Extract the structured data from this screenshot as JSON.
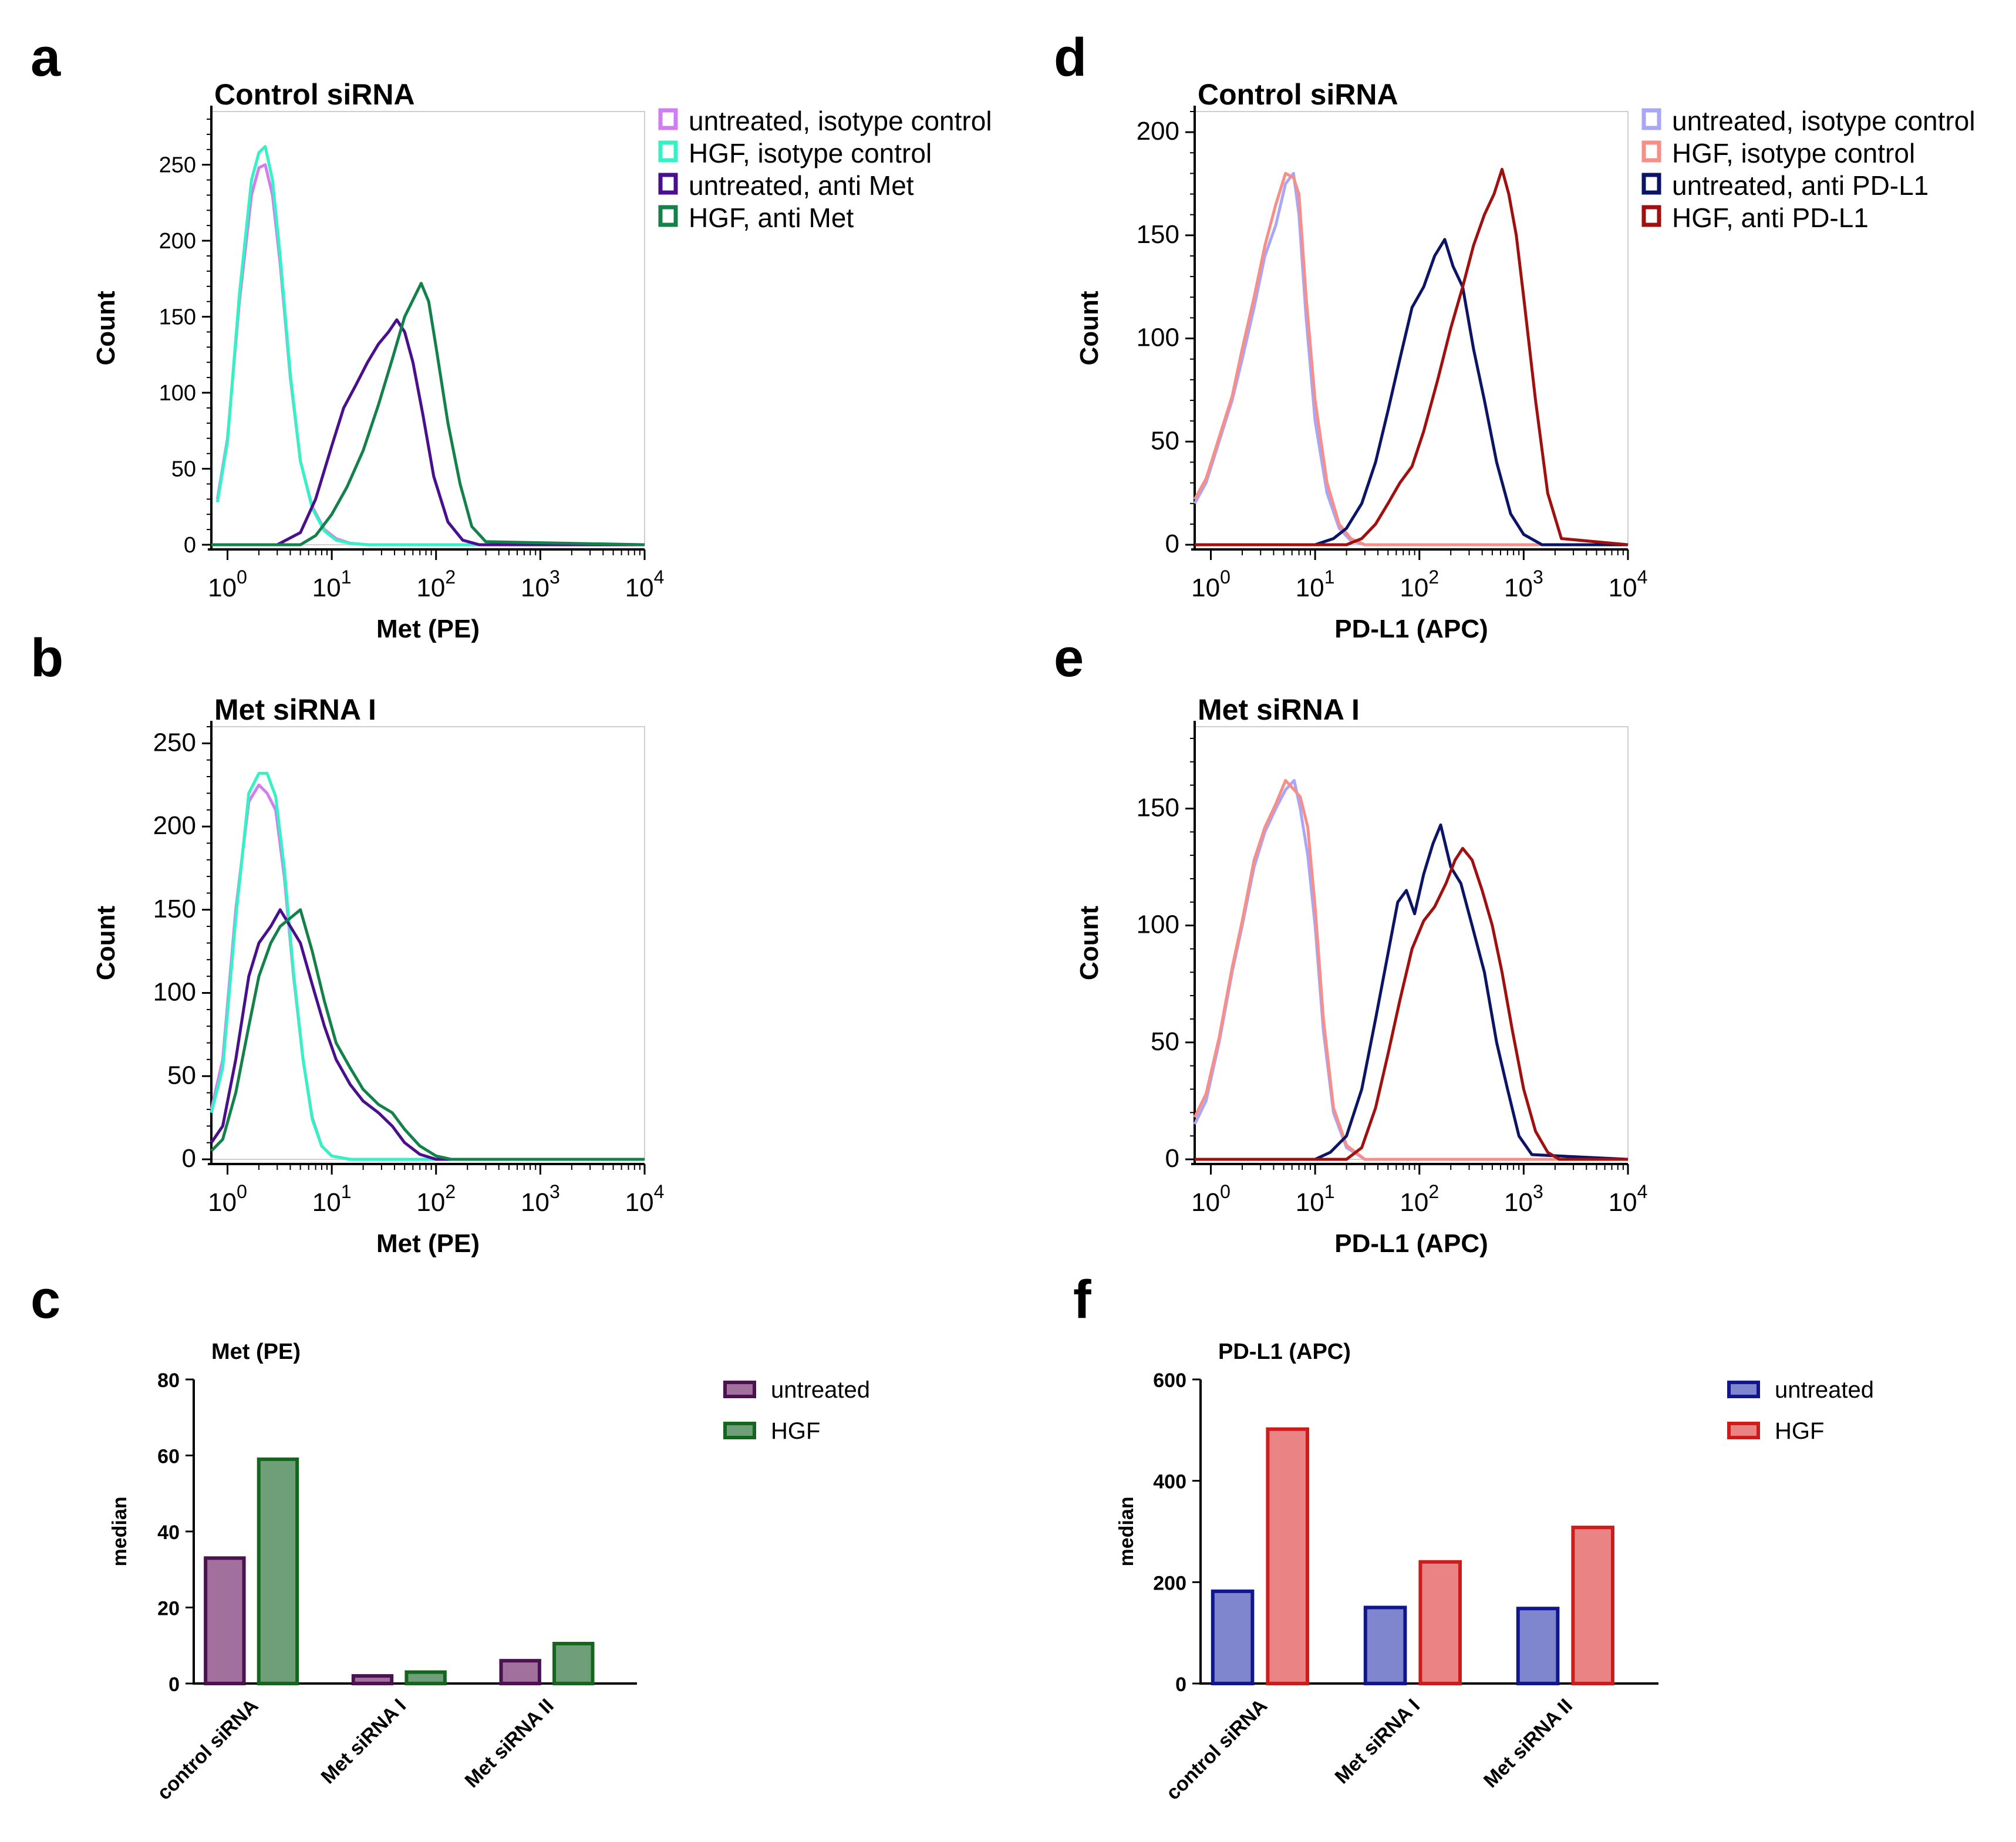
{
  "panel_letters": [
    "a",
    "b",
    "c",
    "d",
    "e",
    "f"
  ],
  "colors": {
    "iso_untreated_met": "#d17df2",
    "iso_hgf_met": "#33f2c4",
    "anti_untreated_met": "#4a0f8c",
    "anti_hgf_met": "#14814a",
    "iso_untreated_pdl1": "#a9a6f7",
    "iso_hgf_pdl1": "#f78e87",
    "anti_untreated_pdl1": "#0c1466",
    "anti_hgf_pdl1": "#a0100f",
    "bar_untreated_met_fill": "#a1709c",
    "bar_untreated_met_stroke": "#4b1150",
    "bar_hgf_met_fill": "#6f9f78",
    "bar_hgf_met_stroke": "#16651f",
    "bar_untreated_pdl1_fill": "#7f86ce",
    "bar_untreated_pdl1_stroke": "#10168c",
    "bar_hgf_pdl1_fill": "#ea8383",
    "bar_hgf_pdl1_stroke": "#cc1c1c"
  },
  "chart_data": [
    {
      "id": "a",
      "type": "line",
      "title": "Control siRNA",
      "xlabel": "Met (PE)",
      "ylabel": "Count",
      "xscale": "log",
      "xlim": [
        0.7,
        10000
      ],
      "ylim": [
        0,
        285
      ],
      "xticks": [
        "10",
        "10",
        "10",
        "10",
        "10"
      ],
      "xtick_exps": [
        "0",
        "1",
        "2",
        "3",
        "4"
      ],
      "yticks": [
        0,
        50,
        100,
        150,
        200,
        250
      ],
      "legend": [
        "untreated, isotype control",
        "HGF, isotype control",
        "untreated, anti Met",
        "HGF, anti Met"
      ],
      "series": [
        {
          "name": "untreated, isotype control",
          "color_key": "iso_untreated_met",
          "x": [
            0.8,
            1.0,
            1.3,
            1.7,
            2.0,
            2.3,
            2.7,
            3.2,
            4.0,
            5.0,
            6.5,
            8.5,
            11,
            15,
            22,
            40,
            10000
          ],
          "y": [
            30,
            70,
            160,
            230,
            248,
            250,
            230,
            185,
            110,
            55,
            25,
            10,
            4,
            1,
            0,
            0,
            0
          ]
        },
        {
          "name": "HGF, isotype control",
          "color_key": "iso_hgf_met",
          "x": [
            0.8,
            1.0,
            1.3,
            1.7,
            2.0,
            2.3,
            2.7,
            3.2,
            4.0,
            5.0,
            6.5,
            8.5,
            11,
            15,
            22,
            40,
            10000
          ],
          "y": [
            28,
            68,
            165,
            240,
            258,
            262,
            240,
            190,
            112,
            55,
            24,
            9,
            3,
            1,
            0,
            0,
            0
          ]
        },
        {
          "name": "untreated, anti Met",
          "color_key": "anti_untreated_met",
          "x": [
            0.7,
            3,
            5,
            7,
            10,
            13,
            17,
            22,
            28,
            35,
            42,
            50,
            60,
            75,
            95,
            130,
            180,
            260,
            10000
          ],
          "y": [
            0,
            0,
            8,
            30,
            65,
            90,
            105,
            120,
            132,
            140,
            148,
            140,
            120,
            85,
            45,
            15,
            3,
            0,
            0
          ]
        },
        {
          "name": "HGF, anti Met",
          "color_key": "anti_hgf_met",
          "x": [
            0.7,
            5,
            7,
            10,
            14,
            20,
            28,
            38,
            50,
            62,
            72,
            85,
            100,
            130,
            170,
            220,
            300,
            10000
          ],
          "y": [
            0,
            0,
            6,
            20,
            38,
            62,
            92,
            122,
            150,
            163,
            172,
            160,
            130,
            80,
            40,
            12,
            2,
            0
          ]
        }
      ]
    },
    {
      "id": "b",
      "type": "line",
      "title": "Met siRNA I",
      "xlabel": "Met (PE)",
      "ylabel": "Count",
      "xscale": "log",
      "xlim": [
        0.7,
        10000
      ],
      "ylim": [
        0,
        260
      ],
      "xticks": [
        "10",
        "10",
        "10",
        "10",
        "10"
      ],
      "xtick_exps": [
        "0",
        "1",
        "2",
        "3",
        "4"
      ],
      "yticks": [
        0,
        50,
        100,
        150,
        200,
        250
      ],
      "series": [
        {
          "name": "untreated, isotype control",
          "color_key": "iso_untreated_met",
          "x": [
            0.7,
            0.9,
            1.2,
            1.6,
            2.0,
            2.4,
            2.9,
            3.5,
            4.3,
            5.3,
            6.5,
            8,
            10,
            15,
            25,
            10000
          ],
          "y": [
            30,
            60,
            150,
            215,
            225,
            220,
            210,
            170,
            110,
            60,
            25,
            8,
            2,
            0,
            0,
            0
          ]
        },
        {
          "name": "HGF, isotype control",
          "color_key": "iso_hgf_met",
          "x": [
            0.7,
            0.9,
            1.2,
            1.6,
            2.0,
            2.4,
            2.9,
            3.5,
            4.3,
            5.3,
            6.5,
            8,
            10,
            15,
            25,
            10000
          ],
          "y": [
            28,
            55,
            145,
            220,
            232,
            232,
            218,
            175,
            112,
            60,
            24,
            8,
            2,
            0,
            0,
            0
          ]
        },
        {
          "name": "untreated, anti Met",
          "color_key": "anti_untreated_met",
          "x": [
            0.7,
            0.9,
            1.2,
            1.6,
            2.0,
            2.6,
            3.2,
            4.0,
            5.0,
            6.5,
            8.5,
            11,
            15,
            20,
            28,
            38,
            50,
            70,
            100,
            10000
          ],
          "y": [
            10,
            20,
            60,
            110,
            130,
            140,
            150,
            140,
            130,
            105,
            80,
            60,
            45,
            35,
            28,
            20,
            10,
            3,
            0,
            0
          ]
        },
        {
          "name": "HGF, anti Met",
          "color_key": "anti_hgf_met",
          "x": [
            0.7,
            0.9,
            1.2,
            1.6,
            2.0,
            2.6,
            3.2,
            4.0,
            5.0,
            6.5,
            8.5,
            11,
            15,
            20,
            28,
            38,
            50,
            70,
            100,
            140,
            10000
          ],
          "y": [
            5,
            12,
            40,
            80,
            110,
            130,
            140,
            145,
            150,
            125,
            95,
            70,
            55,
            42,
            33,
            28,
            18,
            8,
            2,
            0,
            0
          ]
        }
      ]
    },
    {
      "id": "c",
      "type": "bar",
      "title": "Met (PE)",
      "ylabel": "median",
      "ylim": [
        0,
        80
      ],
      "yticks": [
        0,
        20,
        40,
        60,
        80
      ],
      "categories": [
        "control siRNA",
        "Met siRNA I",
        "Met siRNA II"
      ],
      "legend": [
        "untreated",
        "HGF"
      ],
      "series": [
        {
          "name": "untreated",
          "values": [
            33,
            2,
            6
          ]
        },
        {
          "name": "HGF",
          "values": [
            59,
            3,
            10.5
          ]
        }
      ]
    },
    {
      "id": "d",
      "type": "line",
      "title": "Control siRNA",
      "xlabel": "PD-L1 (APC)",
      "ylabel": "Count",
      "xscale": "log",
      "xlim": [
        0.7,
        10000
      ],
      "ylim": [
        0,
        210
      ],
      "xticks": [
        "10",
        "10",
        "10",
        "10",
        "10"
      ],
      "xtick_exps": [
        "0",
        "1",
        "2",
        "3",
        "4"
      ],
      "yticks": [
        0,
        50,
        100,
        150,
        200
      ],
      "legend": [
        "untreated, isotype control",
        "HGF, isotype control",
        "untreated, anti PD-L1",
        "HGF, anti PD-L1"
      ],
      "series": [
        {
          "name": "untreated, isotype control",
          "color_key": "iso_untreated_pdl1",
          "x": [
            0.7,
            0.9,
            1.2,
            1.6,
            2.0,
            2.6,
            3.3,
            4.2,
            5.2,
            6.2,
            7.0,
            8.2,
            10,
            13,
            17,
            22,
            30,
            10000
          ],
          "y": [
            20,
            30,
            50,
            70,
            90,
            115,
            140,
            155,
            175,
            180,
            160,
            110,
            60,
            25,
            8,
            2,
            0,
            0
          ]
        },
        {
          "name": "HGF, isotype control",
          "color_key": "iso_hgf_pdl1",
          "x": [
            0.7,
            0.9,
            1.2,
            1.6,
            2.0,
            2.6,
            3.3,
            4.2,
            5.2,
            6.2,
            7.0,
            8.2,
            10,
            13,
            17,
            22,
            30,
            10000
          ],
          "y": [
            22,
            32,
            52,
            72,
            95,
            120,
            145,
            165,
            180,
            178,
            170,
            120,
            70,
            30,
            10,
            3,
            0,
            0
          ]
        },
        {
          "name": "untreated, anti PD-L1",
          "color_key": "anti_untreated_pdl1",
          "x": [
            0.7,
            10,
            15,
            20,
            28,
            38,
            50,
            65,
            85,
            110,
            140,
            175,
            210,
            260,
            330,
            420,
            550,
            750,
            1000,
            1500,
            10000
          ],
          "y": [
            0,
            0,
            3,
            8,
            20,
            40,
            65,
            90,
            115,
            125,
            140,
            148,
            135,
            125,
            95,
            70,
            40,
            15,
            5,
            0,
            0
          ]
        },
        {
          "name": "HGF, anti PD-L1",
          "color_key": "anti_hgf_pdl1",
          "x": [
            0.7,
            20,
            28,
            38,
            50,
            65,
            85,
            110,
            150,
            200,
            260,
            330,
            420,
            520,
            620,
            720,
            850,
            1000,
            1300,
            1700,
            2300,
            10000
          ],
          "y": [
            0,
            0,
            3,
            10,
            20,
            30,
            38,
            55,
            80,
            105,
            125,
            145,
            160,
            170,
            182,
            170,
            150,
            120,
            70,
            25,
            3,
            0
          ]
        }
      ]
    },
    {
      "id": "e",
      "type": "line",
      "title": "Met siRNA I",
      "xlabel": "PD-L1 (APC)",
      "ylabel": "Count",
      "xscale": "log",
      "xlim": [
        0.7,
        10000
      ],
      "ylim": [
        0,
        185
      ],
      "xticks": [
        "10",
        "10",
        "10",
        "10",
        "10"
      ],
      "xtick_exps": [
        "0",
        "1",
        "2",
        "3",
        "4"
      ],
      "yticks": [
        0,
        50,
        100,
        150
      ],
      "series": [
        {
          "name": "untreated, isotype control",
          "color_key": "iso_untreated_pdl1",
          "x": [
            0.7,
            0.9,
            1.2,
            1.6,
            2.0,
            2.6,
            3.3,
            4.2,
            5.2,
            6.3,
            7.2,
            8.5,
            10,
            12,
            15,
            20,
            30,
            10000
          ],
          "y": [
            15,
            25,
            50,
            80,
            100,
            125,
            140,
            150,
            158,
            162,
            150,
            130,
            100,
            55,
            20,
            5,
            0,
            0
          ]
        },
        {
          "name": "HGF, isotype control",
          "color_key": "iso_hgf_pdl1",
          "x": [
            0.7,
            0.9,
            1.2,
            1.6,
            2.0,
            2.6,
            3.3,
            4.2,
            5.2,
            6.3,
            7.2,
            8.5,
            10,
            12,
            15,
            20,
            30,
            10000
          ],
          "y": [
            18,
            28,
            52,
            82,
            102,
            128,
            142,
            152,
            162,
            158,
            155,
            142,
            108,
            60,
            22,
            6,
            0,
            0
          ]
        },
        {
          "name": "untreated, anti PD-L1",
          "color_key": "anti_untreated_pdl1",
          "x": [
            0.7,
            10,
            14,
            20,
            28,
            38,
            50,
            62,
            75,
            90,
            110,
            135,
            160,
            200,
            250,
            320,
            420,
            550,
            700,
            900,
            1200,
            10000
          ],
          "y": [
            0,
            0,
            3,
            10,
            30,
            60,
            88,
            110,
            115,
            105,
            122,
            135,
            143,
            125,
            118,
            100,
            80,
            50,
            30,
            10,
            2,
            0
          ]
        },
        {
          "name": "HGF, anti PD-L1",
          "color_key": "anti_hgf_pdl1",
          "x": [
            0.7,
            20,
            28,
            38,
            50,
            65,
            85,
            110,
            140,
            180,
            220,
            260,
            320,
            400,
            500,
            620,
            780,
            1000,
            1300,
            1700,
            2200,
            10000
          ],
          "y": [
            0,
            0,
            5,
            22,
            45,
            68,
            90,
            102,
            108,
            118,
            128,
            133,
            128,
            115,
            100,
            80,
            55,
            30,
            12,
            3,
            0,
            0
          ]
        }
      ]
    },
    {
      "id": "f",
      "type": "bar",
      "title": "PD-L1 (APC)",
      "ylabel": "median",
      "ylim": [
        0,
        600
      ],
      "yticks": [
        0,
        200,
        400,
        600
      ],
      "categories": [
        "control siRNA",
        "Met siRNA I",
        "Met siRNA II"
      ],
      "legend": [
        "untreated",
        "HGF"
      ],
      "series": [
        {
          "name": "untreated",
          "values": [
            182,
            150,
            148
          ]
        },
        {
          "name": "HGF",
          "values": [
            502,
            240,
            308
          ]
        }
      ]
    }
  ]
}
